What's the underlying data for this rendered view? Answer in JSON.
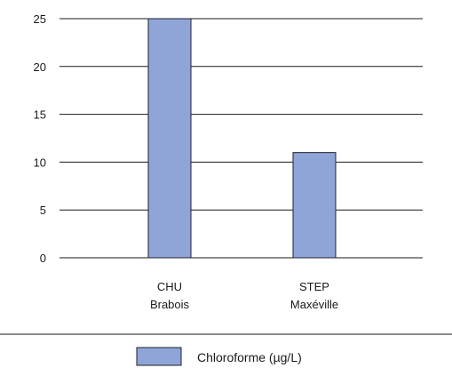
{
  "chart_data": {
    "type": "bar",
    "categories": [
      [
        "CHU",
        "Brabois"
      ],
      [
        "STEP",
        "Maxéville"
      ]
    ],
    "series": [
      {
        "name": "Chloroforme (µg/L)",
        "values": [
          25,
          11
        ]
      }
    ],
    "yticks": [
      "0",
      "5",
      "10",
      "15",
      "20",
      "25"
    ],
    "ylim": [
      0,
      25
    ],
    "grid": true,
    "legend_position": "bottom",
    "bar_color": "#8fa5d8",
    "bar_edge_color": "#1f1f2e"
  }
}
